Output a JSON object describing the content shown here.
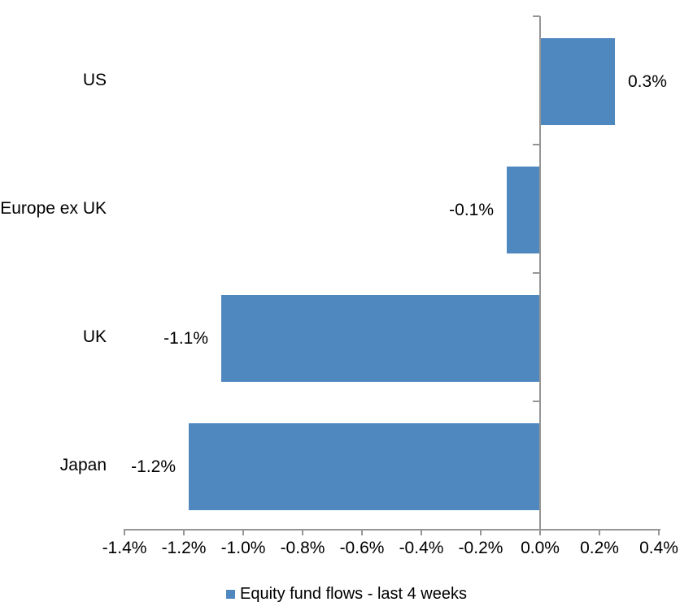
{
  "chart_data": {
    "type": "bar",
    "orientation": "horizontal",
    "title": "",
    "categories": [
      "US",
      "Europe ex UK",
      "UK",
      "Japan"
    ],
    "series": [
      {
        "name": "Equity fund flows - last 4 weeks",
        "values": [
          0.25,
          -0.11,
          -1.07,
          -1.18
        ],
        "data_labels": [
          "0.3%",
          "-0.1%",
          "-1.1%",
          "-1.2%"
        ]
      }
    ],
    "xlabel": "",
    "ylabel": "",
    "xlim": [
      -1.4,
      0.4
    ],
    "x_tick_values": [
      -1.4,
      -1.2,
      -1.0,
      -0.8,
      -0.6,
      -0.4,
      -0.2,
      0.0,
      0.2,
      0.4
    ],
    "x_tick_labels": [
      "-1.4%",
      "-1.2%",
      "-1.0%",
      "-0.8%",
      "-0.6%",
      "-0.4%",
      "-0.2%",
      "0.0%",
      "0.2%",
      "0.4%"
    ],
    "grid": "off",
    "legend_position": "bottom",
    "colors": {
      "bar": "#4E88BE",
      "axis": "#969696",
      "text": "#000000",
      "background": "#FFFFFF"
    }
  },
  "legend": {
    "label": "Equity fund flows - last 4 weeks"
  }
}
